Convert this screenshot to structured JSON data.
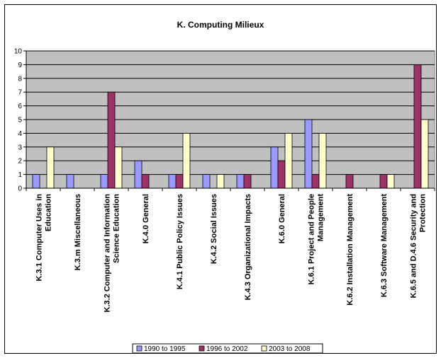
{
  "chart_data": {
    "type": "bar",
    "title": "K. Computing Milieux",
    "xlabel": "",
    "ylabel": "",
    "ylim": [
      0,
      10
    ],
    "yticks": [
      0,
      1,
      2,
      3,
      4,
      5,
      6,
      7,
      8,
      9,
      10
    ],
    "grid": true,
    "legend_position": "bottom",
    "categories": [
      [
        "K.3.1 Computer Uses in",
        "Education"
      ],
      [
        "K.3.m Miscellaneous"
      ],
      [
        "K.3.2 Computer and Information",
        "Science Education"
      ],
      [
        "K.4.0 General"
      ],
      [
        "K.4.1 Public Policy Issues"
      ],
      [
        "K.4.2 Social Issues"
      ],
      [
        "K.4.3 Organizational Impacts"
      ],
      [
        "K.6.0 General"
      ],
      [
        "K.6.1 Project and People",
        "Management"
      ],
      [
        "K.6.2 Installation Management"
      ],
      [
        "K.6.3 Software Management"
      ],
      [
        "K.6.5 and D.4.6 Security and",
        "Protection"
      ]
    ],
    "series": [
      {
        "name": "1990 to 1995",
        "color": "#9999ff",
        "values": [
          1,
          1,
          1,
          2,
          1,
          1,
          1,
          3,
          5,
          0,
          0,
          0
        ]
      },
      {
        "name": "1996 to 2002",
        "color": "#993366",
        "values": [
          0,
          0,
          7,
          1,
          1,
          0,
          1,
          2,
          1,
          1,
          1,
          9
        ]
      },
      {
        "name": "2003 to 2008",
        "color": "#ffffcc",
        "values": [
          3,
          0,
          3,
          0,
          4,
          1,
          0,
          4,
          4,
          0,
          1,
          5
        ]
      }
    ],
    "plot_background": "#c0c0c0"
  }
}
